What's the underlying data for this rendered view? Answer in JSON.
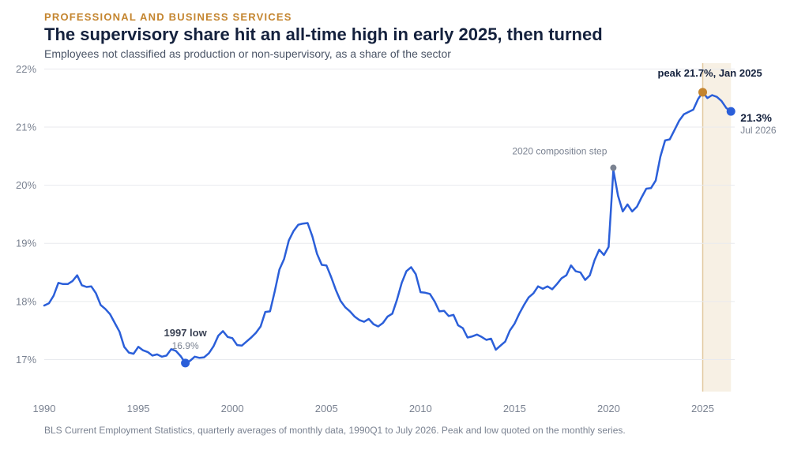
{
  "header": {
    "kicker": "PROFESSIONAL AND BUSINESS SERVICES",
    "title": "The supervisory share hit an all-time high in early 2025, then turned",
    "subtitle": "Employees not classified as production or non-supervisory, as a share of the sector"
  },
  "footer": {
    "source": "BLS Current Employment Statistics, quarterly averages of monthly data, 1990Q1 to July 2026. Peak and low quoted on the monthly series."
  },
  "colors": {
    "line": "#2b5fd9",
    "peak": "#c4852f",
    "note": "#7a8291",
    "band": "#f7f0e4",
    "band_line": "#e2c9a0",
    "grid": "#e8eaee"
  },
  "chart_data": {
    "type": "line",
    "title": "The supervisory share hit an all-time high in early 2025, then turned",
    "subtitle": "Employees not classified as production or non-supervisory, as a share of the sector",
    "xlabel": "",
    "ylabel": "",
    "xlim": [
      1990,
      2026.7
    ],
    "ylim": [
      16.45,
      22.1
    ],
    "grid": true,
    "legend": "none",
    "x_ticks": [
      1990,
      1995,
      2000,
      2005,
      2010,
      2015,
      2020,
      2025
    ],
    "x_tick_labels": [
      "1990",
      "1995",
      "2000",
      "2005",
      "2010",
      "2015",
      "2020",
      "2025"
    ],
    "y_ticks": [
      17,
      18,
      19,
      20,
      21,
      22
    ],
    "y_tick_labels": [
      "17%",
      "18%",
      "19%",
      "20%",
      "21%",
      "22%"
    ],
    "highlight_band": [
      2025.0,
      2026.5
    ],
    "series": [
      {
        "x": [
          1990.0,
          1990.25,
          1990.5,
          1990.75,
          1991.0,
          1991.25,
          1991.5,
          1991.75,
          1992.0,
          1992.25,
          1992.5,
          1992.75,
          1993.0,
          1993.25,
          1993.5,
          1993.75,
          1994.0,
          1994.25,
          1994.5,
          1994.75,
          1995.0,
          1995.25,
          1995.5,
          1995.75,
          1996.0,
          1996.25,
          1996.5,
          1996.75,
          1997.0,
          1997.25,
          1997.5,
          1997.75,
          1998.0,
          1998.25,
          1998.5,
          1998.75,
          1999.0,
          1999.25,
          1999.5,
          1999.75,
          2000.0,
          2000.25,
          2000.5,
          2000.75,
          2001.0,
          2001.25,
          2001.5,
          2001.75,
          2002.0,
          2002.25,
          2002.5,
          2002.75,
          2003.0,
          2003.25,
          2003.5,
          2003.75,
          2004.0,
          2004.25,
          2004.5,
          2004.75,
          2005.0,
          2005.25,
          2005.5,
          2005.75,
          2006.0,
          2006.25,
          2006.5,
          2006.75,
          2007.0,
          2007.25,
          2007.5,
          2007.75,
          2008.0,
          2008.25,
          2008.5,
          2008.75,
          2009.0,
          2009.25,
          2009.5,
          2009.75,
          2010.0,
          2010.25,
          2010.5,
          2010.75,
          2011.0,
          2011.25,
          2011.5,
          2011.75,
          2012.0,
          2012.25,
          2012.5,
          2012.75,
          2013.0,
          2013.25,
          2013.5,
          2013.75,
          2014.0,
          2014.25,
          2014.5,
          2014.75,
          2015.0,
          2015.25,
          2015.5,
          2015.75,
          2016.0,
          2016.25,
          2016.5,
          2016.75,
          2017.0,
          2017.25,
          2017.5,
          2017.75,
          2018.0,
          2018.25,
          2018.5,
          2018.75,
          2019.0,
          2019.25,
          2019.5,
          2019.75,
          2020.0,
          2020.25,
          2020.5,
          2020.75,
          2021.0,
          2021.25,
          2021.5,
          2021.75,
          2022.0,
          2022.25,
          2022.5,
          2022.75,
          2023.0,
          2023.25,
          2023.5,
          2023.75,
          2024.0,
          2024.25,
          2024.5,
          2024.75,
          2025.0,
          2025.25,
          2025.5,
          2025.75,
          2026.0,
          2026.25,
          2026.5
        ],
        "values": [
          17.93,
          17.97,
          18.1,
          18.32,
          18.3,
          18.3,
          18.35,
          18.45,
          18.28,
          18.25,
          18.26,
          18.14,
          17.94,
          17.87,
          17.78,
          17.63,
          17.48,
          17.22,
          17.12,
          17.1,
          17.22,
          17.16,
          17.13,
          17.07,
          17.09,
          17.05,
          17.07,
          17.18,
          17.15,
          17.06,
          16.94,
          16.98,
          17.05,
          17.03,
          17.04,
          17.11,
          17.23,
          17.41,
          17.49,
          17.39,
          17.37,
          17.25,
          17.24,
          17.31,
          17.38,
          17.46,
          17.57,
          17.82,
          17.83,
          18.17,
          18.55,
          18.73,
          19.05,
          19.21,
          19.32,
          19.34,
          19.35,
          19.12,
          18.82,
          18.63,
          18.62,
          18.42,
          18.2,
          18.01,
          17.9,
          17.83,
          17.74,
          17.68,
          17.65,
          17.7,
          17.61,
          17.57,
          17.63,
          17.74,
          17.79,
          18.03,
          18.32,
          18.52,
          18.59,
          18.47,
          18.16,
          18.15,
          18.13,
          18.0,
          17.83,
          17.84,
          17.75,
          17.77,
          17.59,
          17.54,
          17.38,
          17.4,
          17.43,
          17.39,
          17.34,
          17.36,
          17.17,
          17.24,
          17.31,
          17.5,
          17.62,
          17.79,
          17.94,
          18.07,
          18.14,
          18.26,
          18.22,
          18.26,
          18.21,
          18.3,
          18.4,
          18.45,
          18.62,
          18.52,
          18.5,
          18.37,
          18.45,
          18.71,
          18.89,
          18.8,
          18.94,
          20.26,
          19.82,
          19.55,
          19.67,
          19.55,
          19.63,
          19.79,
          19.94,
          19.95,
          20.08,
          20.49,
          20.77,
          20.79,
          20.95,
          21.11,
          21.22,
          21.26,
          21.3,
          21.48,
          21.6,
          21.5,
          21.55,
          21.52,
          21.45,
          21.33,
          21.27
        ]
      }
    ],
    "annotations": [
      {
        "label": "peak 21.7%, Jan 2025",
        "x": 2025.0,
        "y": 21.6
      },
      {
        "label": "21.3%",
        "sublabel": "Jul 2026",
        "x": 2026.5,
        "y": 21.27
      },
      {
        "label": "2020 composition step",
        "x": 2020.25,
        "y": 20.3
      },
      {
        "label": "1997 low",
        "sublabel": "16.9%",
        "x": 1997.5,
        "y": 16.94
      }
    ]
  }
}
